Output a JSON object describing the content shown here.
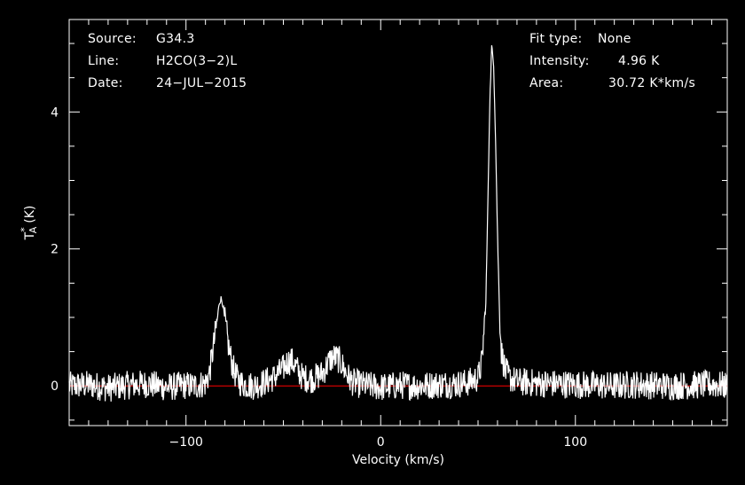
{
  "info_left": {
    "source_label": "Source:",
    "source_value": "G34.3",
    "line_label": "Line:",
    "line_value": "H2CO(3−2)L",
    "date_label": "Date:",
    "date_value": "24−JUL−2015"
  },
  "info_right": {
    "fit_label": "Fit type:",
    "fit_value": "None",
    "intensity_label": "Intensity:",
    "intensity_value": "4.96 K",
    "area_label": "Area:",
    "area_value": "30.72 K*km/s"
  },
  "chart_data": {
    "type": "line",
    "xlabel": "Velocity (km/s)",
    "ylabel": "T*A (K)",
    "xlim": [
      -160,
      178
    ],
    "ylim": [
      -0.58,
      5.35
    ],
    "xticks": [
      -100,
      0,
      100
    ],
    "yticks": [
      0,
      2,
      4
    ],
    "baseline": 0,
    "colors": {
      "spectrum": "#ffffff",
      "baseline": "#ff0000",
      "frame": "#ffffff"
    },
    "series": [
      {
        "x": [
          -160,
          -150,
          -140,
          -130,
          -120,
          -110,
          -100,
          -95,
          -90,
          -88,
          -86,
          -84,
          -83,
          -82,
          -81,
          -80,
          -78,
          -76,
          -74,
          -72,
          -70,
          -65,
          -60,
          -55,
          -50,
          -48,
          -46,
          -44,
          -42,
          -40,
          -35,
          -30,
          -28,
          -26,
          -24,
          -22,
          -20,
          -18,
          -16,
          -14,
          -10,
          0,
          10,
          20,
          30,
          40,
          45,
          50,
          52,
          54,
          55,
          56,
          57,
          58,
          59,
          60,
          61,
          62,
          64,
          66,
          70,
          80,
          90,
          100,
          110,
          120,
          130,
          140,
          150,
          160,
          170,
          178
        ],
        "y": [
          0.0,
          0.02,
          -0.03,
          0.01,
          0.03,
          -0.02,
          0.01,
          0.0,
          0.04,
          0.18,
          0.55,
          0.95,
          1.2,
          1.28,
          1.18,
          0.95,
          0.55,
          0.28,
          0.12,
          0.05,
          0.02,
          0.0,
          0.05,
          0.12,
          0.25,
          0.35,
          0.37,
          0.3,
          0.2,
          0.12,
          0.1,
          0.18,
          0.28,
          0.38,
          0.42,
          0.4,
          0.32,
          0.2,
          0.1,
          0.05,
          0.02,
          -0.02,
          0.01,
          0.0,
          0.02,
          0.03,
          0.05,
          0.12,
          0.35,
          1.2,
          2.6,
          4.1,
          4.96,
          4.7,
          3.6,
          2.2,
          1.1,
          0.5,
          0.22,
          0.12,
          0.06,
          0.04,
          0.03,
          0.02,
          0.01,
          0.0,
          0.02,
          0.01,
          0.0,
          0.01,
          0.02,
          0.0
        ]
      }
    ]
  }
}
